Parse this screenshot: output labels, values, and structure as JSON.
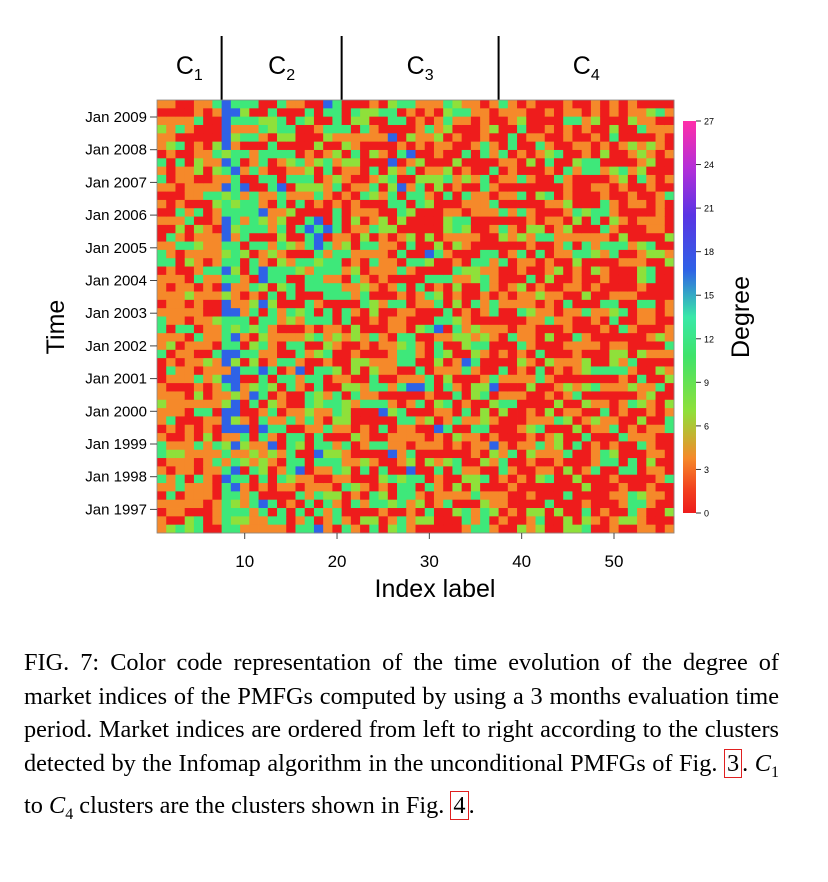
{
  "chart_data": {
    "type": "heatmap",
    "title": "",
    "xlabel": "Index label",
    "ylabel": "Time",
    "x_range": [
      1,
      56
    ],
    "x_ticks": [
      10,
      20,
      30,
      40,
      50
    ],
    "y_ticks": [
      "Jan 2009",
      "Jan 2008",
      "Jan 2007",
      "Jan 2006",
      "Jan 2005",
      "Jan 2004",
      "Jan 2003",
      "Jan 2002",
      "Jan 2001",
      "Jan 2000",
      "Jan 1999",
      "Jan 1998",
      "Jan 1997"
    ],
    "colorbar": {
      "label": "Degree",
      "range": [
        0,
        27
      ],
      "ticks": [
        0,
        3,
        6,
        9,
        12,
        15,
        18,
        21,
        24,
        27
      ],
      "colors": [
        "#ee1c1c",
        "#f5892a",
        "#8fe03a",
        "#3ee87a",
        "#2f62e6",
        "#7a2fe0",
        "#ff2fa8"
      ]
    },
    "clusters": [
      {
        "label": "C",
        "sub": "1",
        "first_index": 1,
        "last_index": 7
      },
      {
        "label": "C",
        "sub": "2",
        "first_index": 8,
        "last_index": 20
      },
      {
        "label": "C",
        "sub": "3",
        "first_index": 21,
        "last_index": 37
      },
      {
        "label": "C",
        "sub": "4",
        "first_index": 38,
        "last_index": 56
      }
    ],
    "rows": 52,
    "note_values": "per-cell degree values not legible; rendered pattern is approximate",
    "dominant_levels": {
      "C1": "orange/red, low degree (0-6)",
      "C2": "highest degrees, frequent green/blue (9-18)",
      "C3": "mixed red/orange with green (3-12)",
      "C4": "mostly red/orange (0-6)"
    }
  },
  "caption": {
    "label": "FIG. 7:",
    "text_before_ref1": "Color code representation of the time evolution of the degree of market indices of the PMFGs computed by using a 3 months evaluation time period. Market indices are ordered from left to right according to the clusters detected by the Infomap algorithm in the unconditional PMFGs of Fig.",
    "ref1": "3",
    "c1_letter": "C",
    "c1_sub": "1",
    "to_text": "to",
    "c4_letter": "C",
    "c4_sub": "4",
    "text_before_ref2": "clusters are the clusters shown in Fig.",
    "ref2": "4"
  }
}
